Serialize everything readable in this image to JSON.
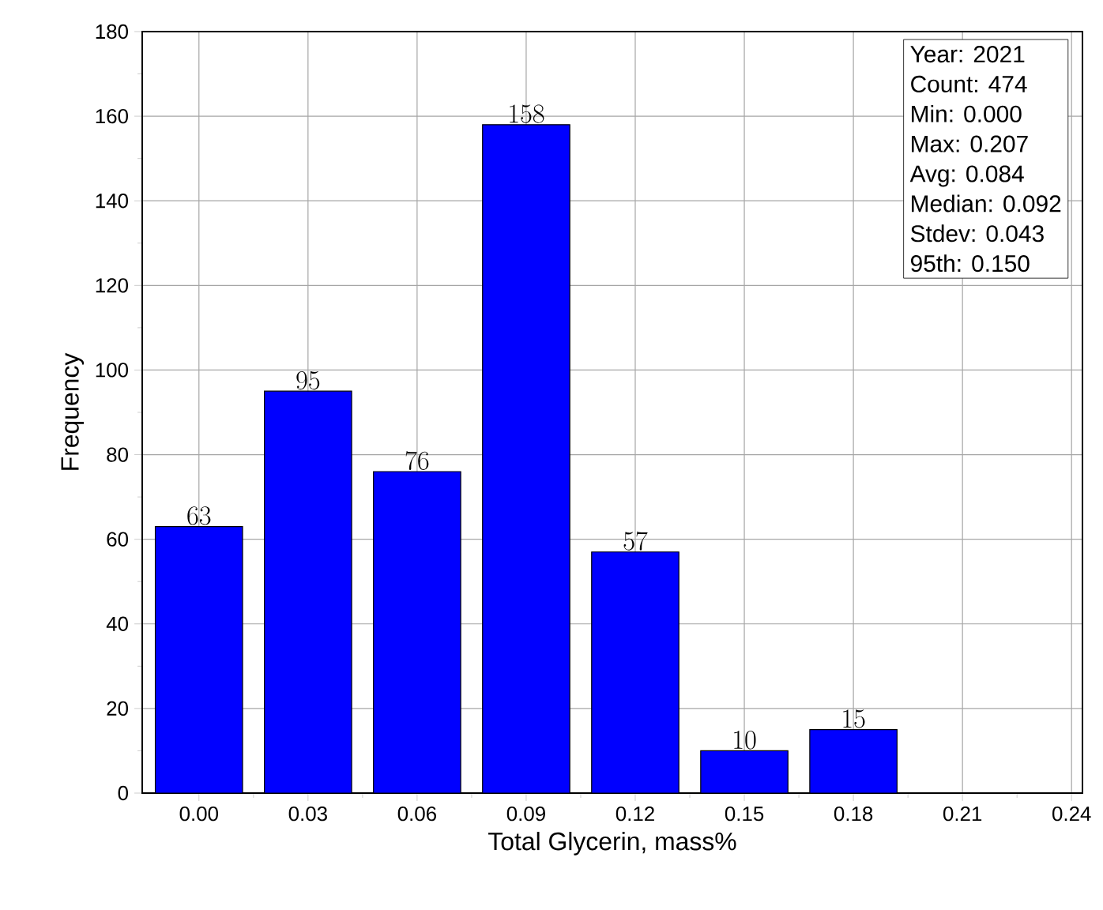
{
  "chart_data": {
    "type": "bar",
    "xlabel": "Total Glycerin, mass%",
    "ylabel": "Frequency",
    "categories": [
      "0.00",
      "0.03",
      "0.06",
      "0.09",
      "0.12",
      "0.15",
      "0.18",
      "0.21",
      "0.24"
    ],
    "values": [
      63,
      95,
      76,
      158,
      57,
      10,
      15,
      null,
      null
    ],
    "color": "#0000ff",
    "ylim": [
      0,
      180
    ],
    "yticks": [
      0,
      20,
      40,
      60,
      80,
      100,
      120,
      140,
      160,
      180
    ],
    "grid": true,
    "data_labels": true,
    "annotations": [
      "Year: 2021",
      "Count: 474",
      "Min: 0.000",
      "Max: 0.207",
      "Avg: 0.084",
      "Median: 0.092",
      "Stdev: 0.043",
      "95th: 0.150"
    ]
  }
}
